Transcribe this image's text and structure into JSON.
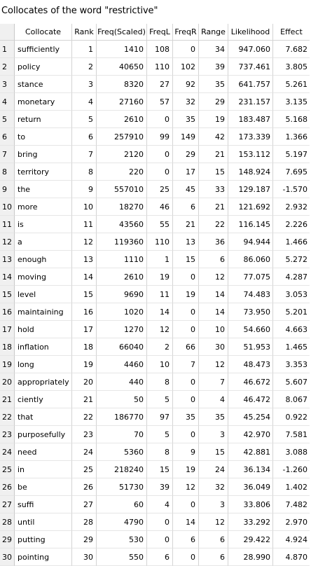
{
  "title": "Collocates of the word \"restrictive\"",
  "columns": {
    "collocate": "Collocate",
    "rank": "Rank",
    "freq_scaled": "Freq(Scaled)",
    "freq_l": "FreqL",
    "freq_r": "FreqR",
    "range": "Range",
    "likelihood": "Likelihood",
    "effect": "Effect"
  },
  "rows": [
    {
      "idx": "1",
      "collocate": "sufficiently",
      "rank": "1",
      "freq_scaled": "1410",
      "freq_l": "108",
      "freq_r": "0",
      "range": "34",
      "likelihood": "947.060",
      "effect": "7.682"
    },
    {
      "idx": "2",
      "collocate": "policy",
      "rank": "2",
      "freq_scaled": "40650",
      "freq_l": "110",
      "freq_r": "102",
      "range": "39",
      "likelihood": "737.461",
      "effect": "3.805"
    },
    {
      "idx": "3",
      "collocate": "stance",
      "rank": "3",
      "freq_scaled": "8320",
      "freq_l": "27",
      "freq_r": "92",
      "range": "35",
      "likelihood": "641.757",
      "effect": "5.261"
    },
    {
      "idx": "4",
      "collocate": "monetary",
      "rank": "4",
      "freq_scaled": "27160",
      "freq_l": "57",
      "freq_r": "32",
      "range": "29",
      "likelihood": "231.157",
      "effect": "3.135"
    },
    {
      "idx": "5",
      "collocate": "return",
      "rank": "5",
      "freq_scaled": "2610",
      "freq_l": "0",
      "freq_r": "35",
      "range": "19",
      "likelihood": "183.487",
      "effect": "5.168"
    },
    {
      "idx": "6",
      "collocate": "to",
      "rank": "6",
      "freq_scaled": "257910",
      "freq_l": "99",
      "freq_r": "149",
      "range": "42",
      "likelihood": "173.339",
      "effect": "1.366"
    },
    {
      "idx": "7",
      "collocate": "bring",
      "rank": "7",
      "freq_scaled": "2120",
      "freq_l": "0",
      "freq_r": "29",
      "range": "21",
      "likelihood": "153.112",
      "effect": "5.197"
    },
    {
      "idx": "8",
      "collocate": "territory",
      "rank": "8",
      "freq_scaled": "220",
      "freq_l": "0",
      "freq_r": "17",
      "range": "15",
      "likelihood": "148.924",
      "effect": "7.695"
    },
    {
      "idx": "9",
      "collocate": "the",
      "rank": "9",
      "freq_scaled": "557010",
      "freq_l": "25",
      "freq_r": "45",
      "range": "33",
      "likelihood": "129.187",
      "effect": "-1.570"
    },
    {
      "idx": "10",
      "collocate": "more",
      "rank": "10",
      "freq_scaled": "18270",
      "freq_l": "46",
      "freq_r": "6",
      "range": "21",
      "likelihood": "121.692",
      "effect": "2.932"
    },
    {
      "idx": "11",
      "collocate": "is",
      "rank": "11",
      "freq_scaled": "43560",
      "freq_l": "55",
      "freq_r": "21",
      "range": "22",
      "likelihood": "116.145",
      "effect": "2.226"
    },
    {
      "idx": "12",
      "collocate": "a",
      "rank": "12",
      "freq_scaled": "119360",
      "freq_l": "110",
      "freq_r": "13",
      "range": "36",
      "likelihood": "94.944",
      "effect": "1.466"
    },
    {
      "idx": "13",
      "collocate": "enough",
      "rank": "13",
      "freq_scaled": "1110",
      "freq_l": "1",
      "freq_r": "15",
      "range": "6",
      "likelihood": "86.060",
      "effect": "5.272"
    },
    {
      "idx": "14",
      "collocate": "moving",
      "rank": "14",
      "freq_scaled": "2610",
      "freq_l": "19",
      "freq_r": "0",
      "range": "12",
      "likelihood": "77.075",
      "effect": "4.287"
    },
    {
      "idx": "15",
      "collocate": "level",
      "rank": "15",
      "freq_scaled": "9690",
      "freq_l": "11",
      "freq_r": "19",
      "range": "14",
      "likelihood": "74.483",
      "effect": "3.053"
    },
    {
      "idx": "16",
      "collocate": "maintaining",
      "rank": "16",
      "freq_scaled": "1020",
      "freq_l": "14",
      "freq_r": "0",
      "range": "14",
      "likelihood": "73.950",
      "effect": "5.201"
    },
    {
      "idx": "17",
      "collocate": "hold",
      "rank": "17",
      "freq_scaled": "1270",
      "freq_l": "12",
      "freq_r": "0",
      "range": "10",
      "likelihood": "54.660",
      "effect": "4.663"
    },
    {
      "idx": "18",
      "collocate": "inflation",
      "rank": "18",
      "freq_scaled": "66040",
      "freq_l": "2",
      "freq_r": "66",
      "range": "30",
      "likelihood": "51.953",
      "effect": "1.465"
    },
    {
      "idx": "19",
      "collocate": "long",
      "rank": "19",
      "freq_scaled": "4460",
      "freq_l": "10",
      "freq_r": "7",
      "range": "12",
      "likelihood": "48.473",
      "effect": "3.353"
    },
    {
      "idx": "20",
      "collocate": "appropriately",
      "rank": "20",
      "freq_scaled": "440",
      "freq_l": "8",
      "freq_r": "0",
      "range": "7",
      "likelihood": "46.672",
      "effect": "5.607"
    },
    {
      "idx": "21",
      "collocate": "ciently",
      "rank": "21",
      "freq_scaled": "50",
      "freq_l": "5",
      "freq_r": "0",
      "range": "4",
      "likelihood": "46.472",
      "effect": "8.067"
    },
    {
      "idx": "22",
      "collocate": "that",
      "rank": "22",
      "freq_scaled": "186770",
      "freq_l": "97",
      "freq_r": "35",
      "range": "35",
      "likelihood": "45.254",
      "effect": "0.922"
    },
    {
      "idx": "23",
      "collocate": "purposefully",
      "rank": "23",
      "freq_scaled": "70",
      "freq_l": "5",
      "freq_r": "0",
      "range": "3",
      "likelihood": "42.970",
      "effect": "7.581"
    },
    {
      "idx": "24",
      "collocate": "need",
      "rank": "24",
      "freq_scaled": "5360",
      "freq_l": "8",
      "freq_r": "9",
      "range": "15",
      "likelihood": "42.881",
      "effect": "3.088"
    },
    {
      "idx": "25",
      "collocate": "in",
      "rank": "25",
      "freq_scaled": "218240",
      "freq_l": "15",
      "freq_r": "19",
      "range": "24",
      "likelihood": "36.134",
      "effect": "-1.260"
    },
    {
      "idx": "26",
      "collocate": "be",
      "rank": "26",
      "freq_scaled": "51730",
      "freq_l": "39",
      "freq_r": "12",
      "range": "32",
      "likelihood": "36.049",
      "effect": "1.402"
    },
    {
      "idx": "27",
      "collocate": "suffi",
      "rank": "27",
      "freq_scaled": "60",
      "freq_l": "4",
      "freq_r": "0",
      "range": "3",
      "likelihood": "33.806",
      "effect": "7.482"
    },
    {
      "idx": "28",
      "collocate": "until",
      "rank": "28",
      "freq_scaled": "4790",
      "freq_l": "0",
      "freq_r": "14",
      "range": "12",
      "likelihood": "33.292",
      "effect": "2.970"
    },
    {
      "idx": "29",
      "collocate": "putting",
      "rank": "29",
      "freq_scaled": "530",
      "freq_l": "0",
      "freq_r": "6",
      "range": "6",
      "likelihood": "29.422",
      "effect": "4.924"
    },
    {
      "idx": "30",
      "collocate": "pointing",
      "rank": "30",
      "freq_scaled": "550",
      "freq_l": "6",
      "freq_r": "0",
      "range": "6",
      "likelihood": "28.990",
      "effect": "4.870"
    }
  ]
}
